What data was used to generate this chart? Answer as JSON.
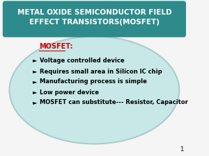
{
  "title_line1": "METAL OXIDE SEMICONDUCTOR FIELD",
  "title_line2": "EFFECT TRANSISTORS(MOSFET)",
  "title_bg_color": "#2e8b8b",
  "title_text_color": "#ffffff",
  "ellipse_color": "#c8e8e8",
  "ellipse_edge_color": "#aacccc",
  "bg_color": "#f5f5f5",
  "subtitle": "MOSFET:",
  "subtitle_color": "#cc0000",
  "bullet_char": "►",
  "bullet_color": "#000000",
  "bullet_items": [
    "Voltage controlled device",
    "Requires small area in Silicon IC chip",
    "Manufacturing process is simple",
    "Low power device",
    "MOSFET can substitute--- Resistor, Capacitor"
  ],
  "bullet_text_color": "#000000",
  "page_number": "1",
  "page_number_color": "#000000"
}
